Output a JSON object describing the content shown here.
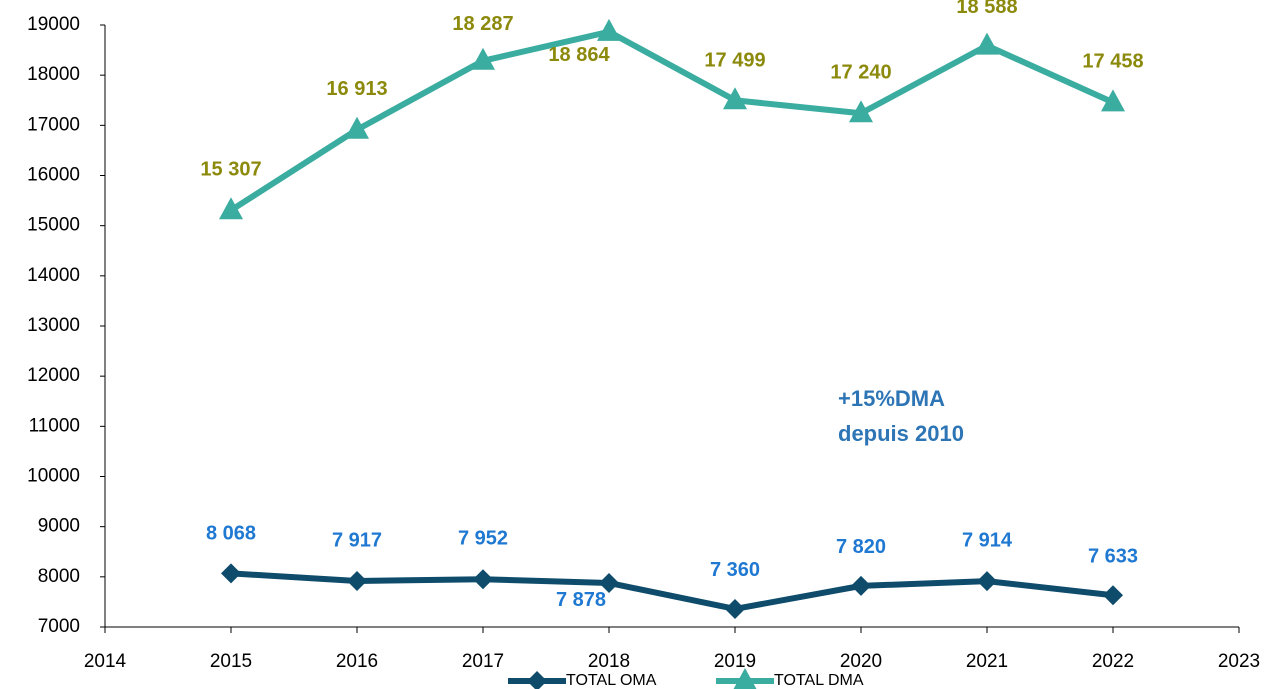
{
  "chart_data": {
    "type": "line",
    "x": [
      2015,
      2016,
      2017,
      2018,
      2019,
      2020,
      2021,
      2022
    ],
    "series": [
      {
        "name": "TOTAL OMA",
        "color": "#0f4c6b",
        "label_color": "#1f78d1",
        "marker": "diamond",
        "values": [
          8068,
          7917,
          7952,
          7878,
          7360,
          7820,
          7914,
          7633
        ],
        "value_labels": [
          "8 068",
          "7 917",
          "7 952",
          "7 878",
          "7 360",
          "7 820",
          "7 914",
          "7 633"
        ]
      },
      {
        "name": "TOTAL DMA",
        "color": "#3aaca0",
        "label_color": "#8c8a0c",
        "marker": "triangle",
        "values": [
          15307,
          16913,
          18287,
          18864,
          17499,
          17240,
          18588,
          17458
        ],
        "value_labels": [
          "15 307",
          "16 913",
          "18 287",
          "18 864",
          "17 499",
          "17 240",
          "18 588",
          "17 458"
        ]
      }
    ],
    "annotation": [
      "+15%DMA",
      "depuis 2010"
    ],
    "annotation_color": "#2e75b6",
    "xlim": [
      2014,
      2023
    ],
    "xticks": [
      2014,
      2015,
      2016,
      2017,
      2018,
      2019,
      2020,
      2021,
      2022,
      2023
    ],
    "ylim": [
      7000,
      19000
    ],
    "yticks": [
      7000,
      8000,
      9000,
      10000,
      11000,
      12000,
      13000,
      14000,
      15000,
      16000,
      17000,
      18000,
      19000
    ],
    "grid": false,
    "legend": "bottom"
  }
}
